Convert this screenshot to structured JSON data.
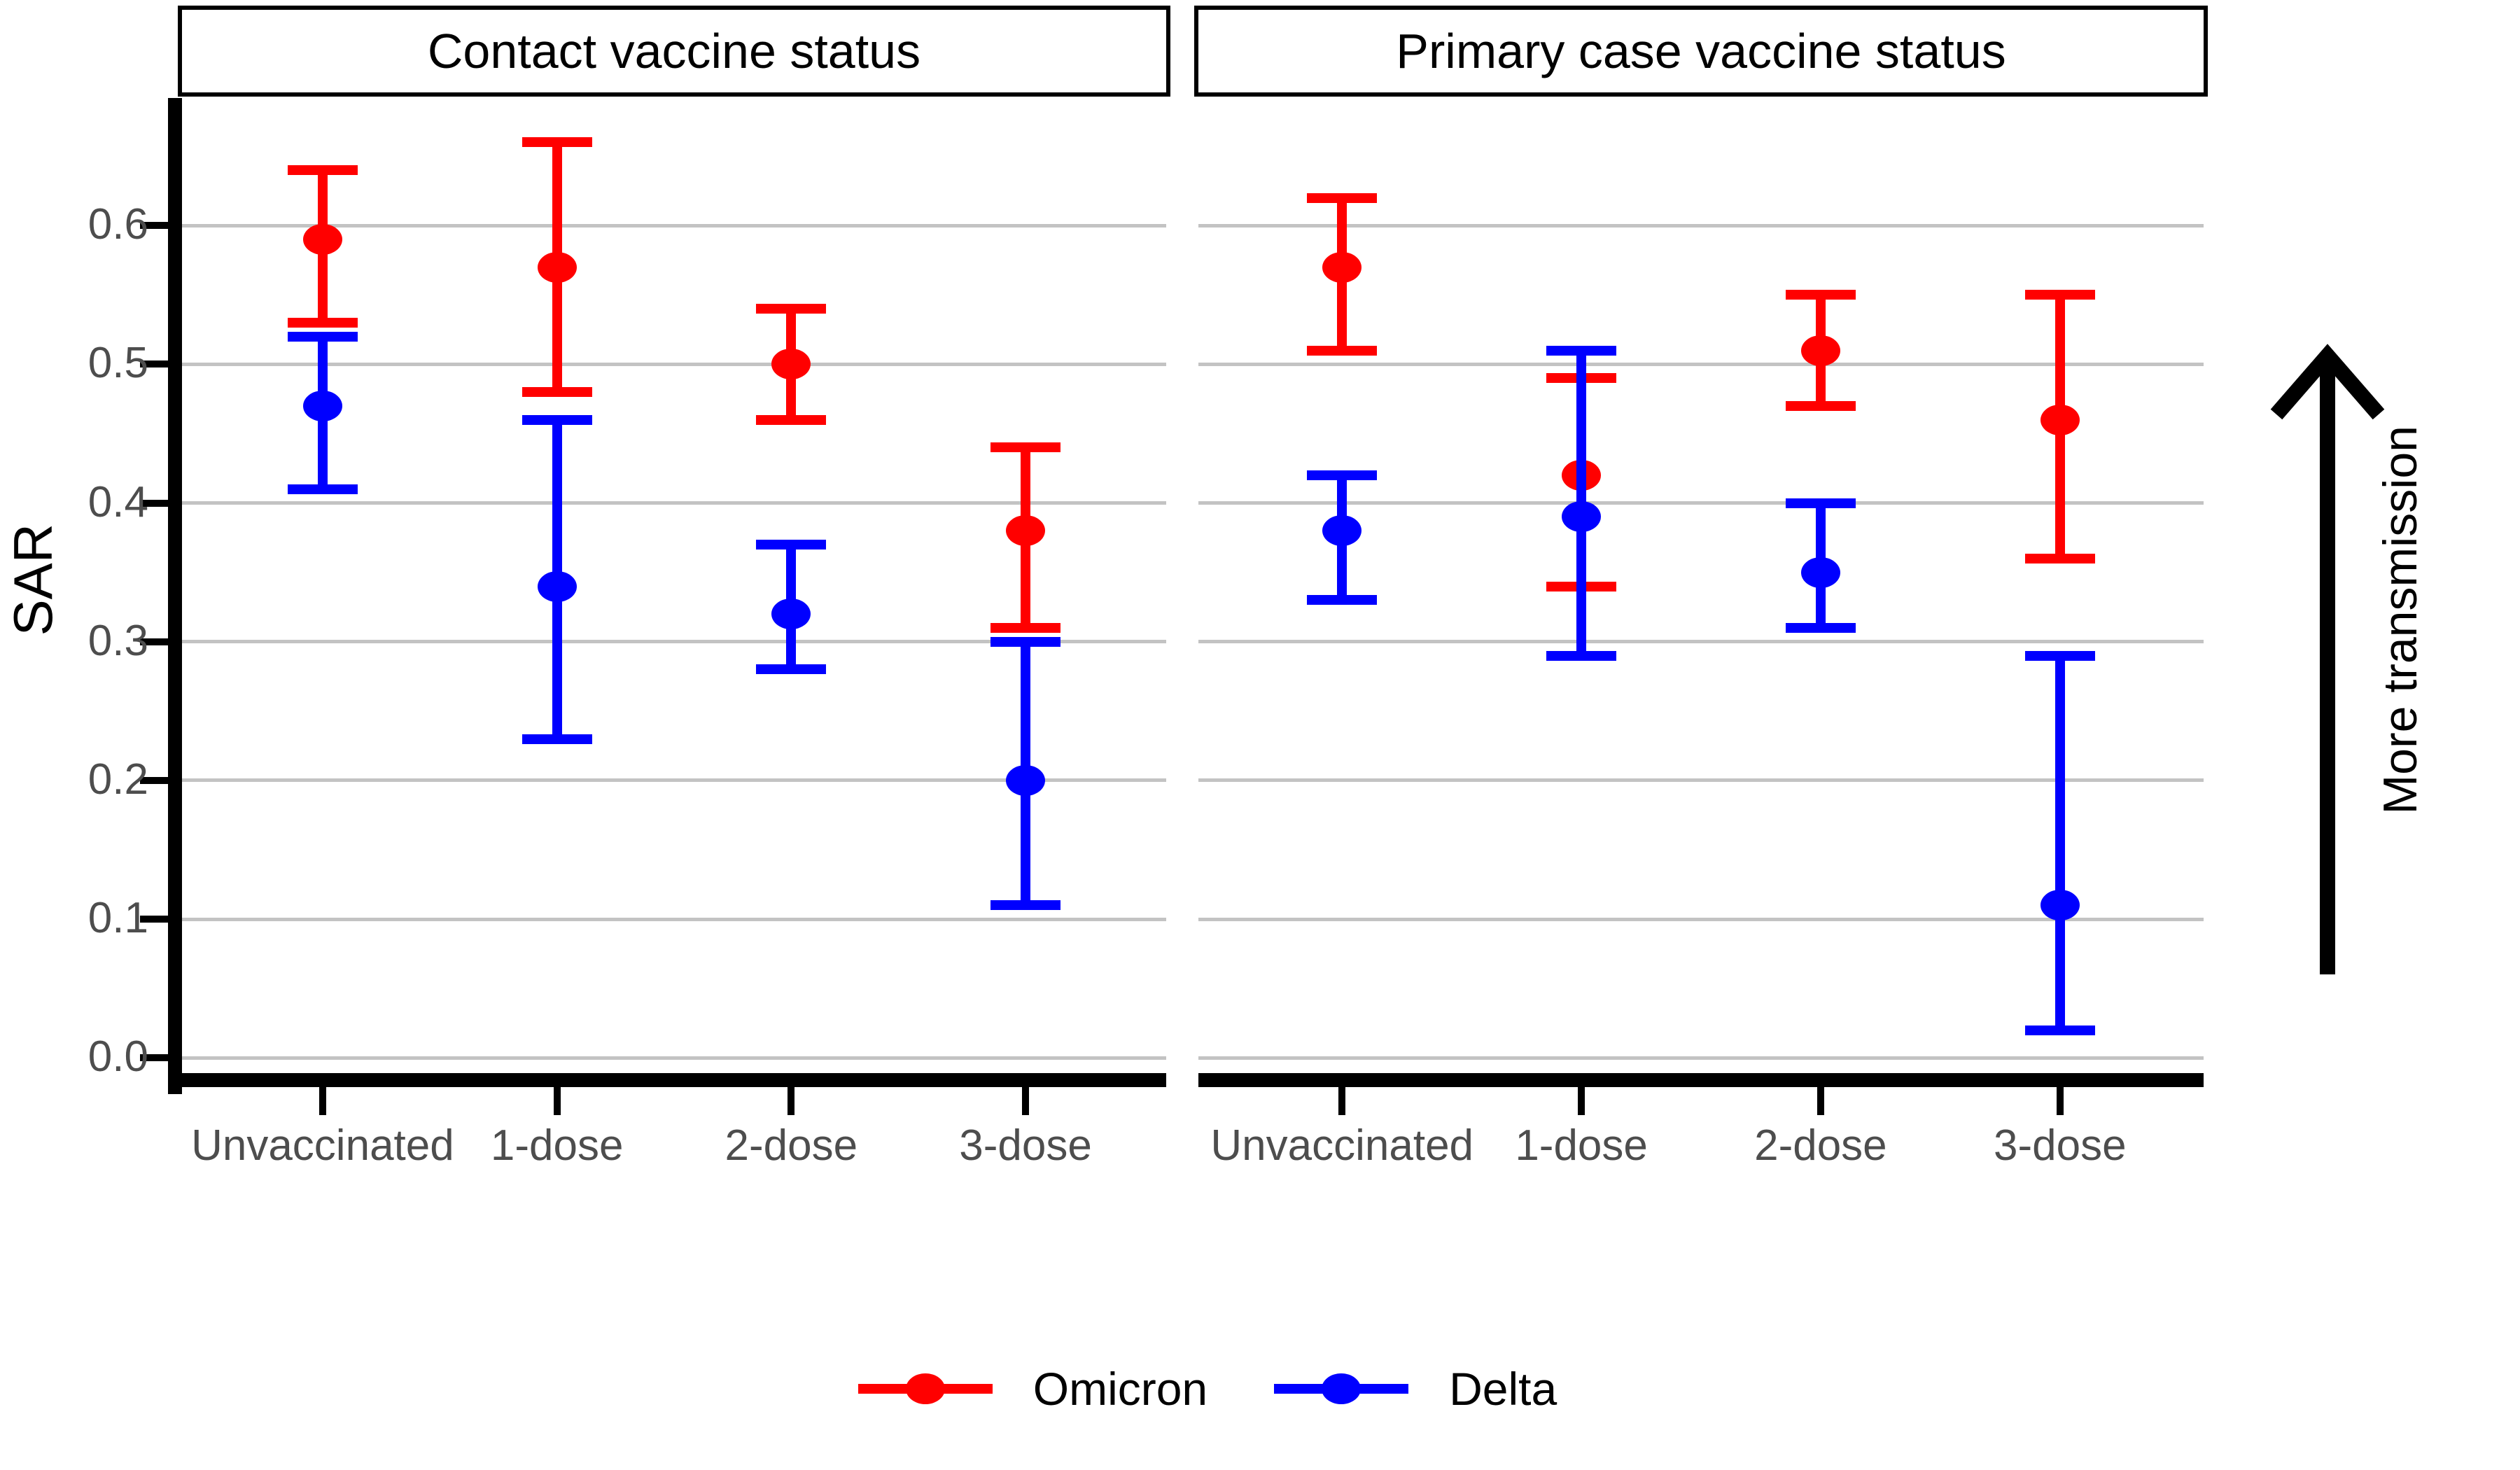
{
  "figure": {
    "y_axis_title": "SAR",
    "right_annotation": "More transmission",
    "legend": [
      {
        "label": "Omicron",
        "color": "#FF0000"
      },
      {
        "label": "Delta",
        "color": "#0000FF"
      }
    ]
  },
  "chart_data": {
    "type": "scatter",
    "subtype": "point-estimate-with-error-bars",
    "title": "",
    "xlabel": "",
    "ylabel": "SAR",
    "categories": [
      "Unvaccinated",
      "1-dose",
      "2-dose",
      "3-dose"
    ],
    "y_ticks": [
      0.0,
      0.1,
      0.2,
      0.3,
      0.4,
      0.5,
      0.6
    ],
    "y_tick_labels": [
      "0.0",
      "0.1",
      "0.2",
      "0.3",
      "0.4",
      "0.5",
      "0.6"
    ],
    "ylim": [
      -0.016,
      0.692
    ],
    "grid": "horizontal",
    "legend_position": "bottom",
    "annotation": "More transmission",
    "panels": [
      {
        "title": "Contact vaccine status",
        "series": [
          {
            "name": "Omicron",
            "color": "#FF0000",
            "points": [
              {
                "category": "Unvaccinated",
                "y": 0.59,
                "lo": 0.53,
                "hi": 0.64
              },
              {
                "category": "1-dose",
                "y": 0.57,
                "lo": 0.48,
                "hi": 0.66
              },
              {
                "category": "2-dose",
                "y": 0.5,
                "lo": 0.46,
                "hi": 0.54
              },
              {
                "category": "3-dose",
                "y": 0.38,
                "lo": 0.31,
                "hi": 0.44
              }
            ]
          },
          {
            "name": "Delta",
            "color": "#0000FF",
            "points": [
              {
                "category": "Unvaccinated",
                "y": 0.47,
                "lo": 0.41,
                "hi": 0.52
              },
              {
                "category": "1-dose",
                "y": 0.34,
                "lo": 0.23,
                "hi": 0.46
              },
              {
                "category": "2-dose",
                "y": 0.32,
                "lo": 0.28,
                "hi": 0.37
              },
              {
                "category": "3-dose",
                "y": 0.2,
                "lo": 0.11,
                "hi": 0.3
              }
            ]
          }
        ]
      },
      {
        "title": "Primary case vaccine status",
        "series": [
          {
            "name": "Omicron",
            "color": "#FF0000",
            "points": [
              {
                "category": "Unvaccinated",
                "y": 0.57,
                "lo": 0.51,
                "hi": 0.62
              },
              {
                "category": "1-dose",
                "y": 0.42,
                "lo": 0.34,
                "hi": 0.49
              },
              {
                "category": "2-dose",
                "y": 0.51,
                "lo": 0.47,
                "hi": 0.55
              },
              {
                "category": "3-dose",
                "y": 0.46,
                "lo": 0.36,
                "hi": 0.55
              }
            ]
          },
          {
            "name": "Delta",
            "color": "#0000FF",
            "points": [
              {
                "category": "Unvaccinated",
                "y": 0.38,
                "lo": 0.33,
                "hi": 0.42
              },
              {
                "category": "1-dose",
                "y": 0.39,
                "lo": 0.29,
                "hi": 0.51
              },
              {
                "category": "2-dose",
                "y": 0.35,
                "lo": 0.31,
                "hi": 0.4
              },
              {
                "category": "3-dose",
                "y": 0.11,
                "lo": 0.02,
                "hi": 0.29
              }
            ]
          }
        ]
      }
    ]
  }
}
